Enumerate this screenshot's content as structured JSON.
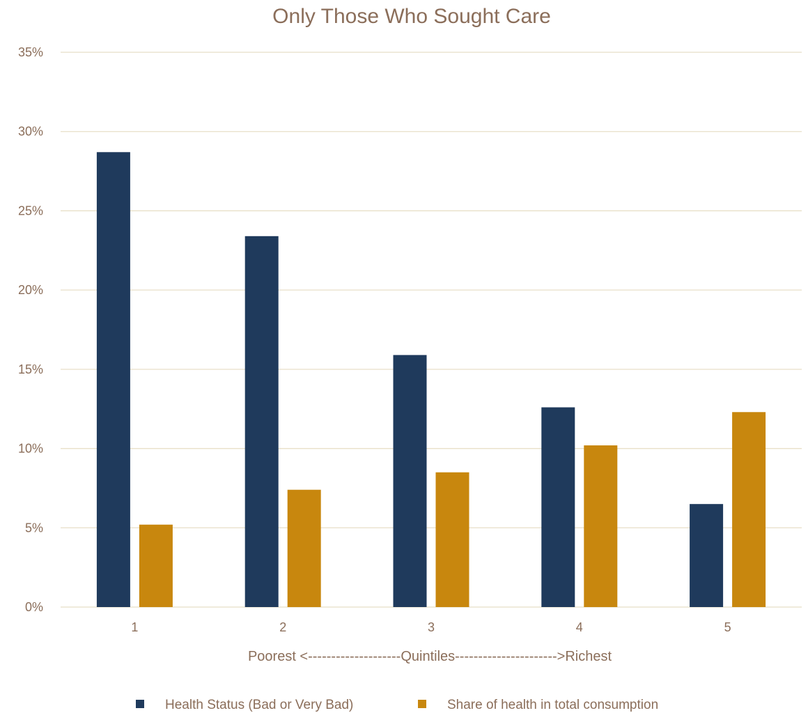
{
  "chart_data": {
    "type": "bar",
    "title": "Only Those Who Sought Care",
    "xlabel": "Poorest <--------------------Quintiles---------------------->Richest",
    "ylabel": "",
    "categories": [
      "1",
      "2",
      "3",
      "4",
      "5"
    ],
    "ylim": [
      0,
      0.35
    ],
    "yticks": [
      "0%",
      "5%",
      "10%",
      "15%",
      "20%",
      "25%",
      "30%",
      "35%"
    ],
    "grid": true,
    "legend_position": "bottom",
    "series": [
      {
        "name": "Health Status (Bad or Very Bad)",
        "color": "#1F3A5C",
        "values": [
          0.287,
          0.234,
          0.159,
          0.126,
          0.065
        ]
      },
      {
        "name": "Share of health in total consumption",
        "color": "#C8870E",
        "values": [
          0.052,
          0.074,
          0.085,
          0.102,
          0.123
        ]
      }
    ]
  }
}
